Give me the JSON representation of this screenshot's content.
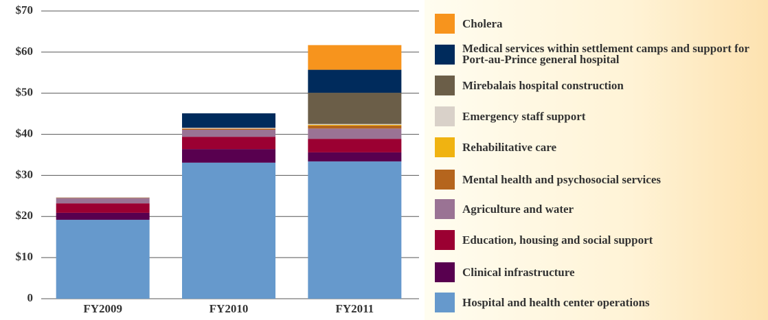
{
  "chart_data": {
    "type": "stacked_bar",
    "categories": [
      "FY2009",
      "FY2010",
      "FY2011"
    ],
    "series": [
      {
        "name": "Hospital and health center operations",
        "color": "#6699cc",
        "values": [
          19.2,
          33.1,
          33.4
        ]
      },
      {
        "name": "Clinical infrastructure",
        "color": "#58004f",
        "values": [
          1.7,
          3.3,
          2.2
        ]
      },
      {
        "name": "Education, housing and social support",
        "color": "#9b0032",
        "values": [
          2.3,
          3.0,
          3.3
        ]
      },
      {
        "name": "Agriculture and water",
        "color": "#9a7394",
        "values": [
          1.3,
          1.7,
          2.5
        ]
      },
      {
        "name": "Mental health and psychosocial services",
        "color": "#b5651d",
        "values": [
          0.1,
          0.3,
          0.7
        ]
      },
      {
        "name": "Rehabilitative care",
        "color": "#f0b311",
        "values": [
          0,
          0,
          0.2
        ]
      },
      {
        "name": "Emergency staff support",
        "color": "#d9d1c9",
        "values": [
          0.1,
          0.2,
          0.2
        ]
      },
      {
        "name": "Mirebalais hospital construction",
        "color": "#6b5e48",
        "values": [
          0,
          0,
          7.6
        ]
      },
      {
        "name": "Medical services within settlement camps and support for Port-au-Prince general hospital",
        "color": "#002b5c",
        "values": [
          0,
          3.5,
          5.6
        ]
      },
      {
        "name": "Cholera",
        "color": "#f7941d",
        "values": [
          0,
          0,
          6.0
        ]
      }
    ],
    "ylim": [
      0,
      70
    ],
    "yticks": [
      0,
      {
        "value": 10,
        "label": "$10"
      },
      {
        "value": 20,
        "label": "$20"
      },
      {
        "value": 30,
        "label": "$30"
      },
      {
        "value": 40,
        "label": "$40"
      },
      {
        "value": 50,
        "label": "$50"
      },
      {
        "value": 60,
        "label": "$60"
      },
      {
        "value": 70,
        "label": "$70"
      }
    ],
    "grid": true
  }
}
